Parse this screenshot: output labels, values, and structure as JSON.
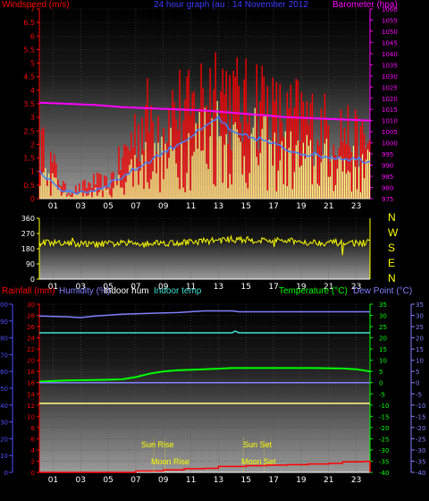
{
  "header": {
    "left_label": "Windspeed (m/s)",
    "title": "24 hour graph (au : 14 November 2012",
    "right_label": "Barometer (hpa)"
  },
  "panel3_labels": {
    "rain": "Rainfall (mm)",
    "humidity": "Humidity (%)",
    "indoor_hum": "Indoor hum",
    "indoor_temp": "Indoor temp",
    "temperature": "Temperature (°C)",
    "dew_point": "Dew Point (°C)"
  },
  "compass": [
    "N",
    "W",
    "S",
    "E",
    "N"
  ],
  "events": {
    "sun_rise": "Sun Rise",
    "moon_rise": "Moon Rise",
    "sun_set": "Sun Set",
    "moon_set": "Moon Set"
  },
  "colors": {
    "wind_gust": "#ff0000",
    "wind_avg": "#ffff80",
    "wind_mean": "#3f7fff",
    "barometer": "#ff00ff",
    "wind_dir": "#ffff00",
    "rain": "#ff0000",
    "humidity": "#8080ff",
    "indoor_hum": "#ffff80",
    "indoor_temp": "#40e0d0",
    "temperature": "#00ff00",
    "dew_point": "#8080ff"
  },
  "chart_data": [
    {
      "type": "line",
      "title": "24 hour graph (au : 14 November 2012",
      "x_ticks": [
        "01",
        "03",
        "05",
        "07",
        "09",
        "11",
        "13",
        "15",
        "17",
        "19",
        "21",
        "23"
      ],
      "x_range": [
        0,
        24
      ],
      "left_axis": {
        "label": "Windspeed (m/s)",
        "ylim": [
          0,
          7
        ],
        "ticks": [
          "0",
          "0.5",
          "1",
          "1.5",
          "2",
          "2.5",
          "3",
          "3.5",
          "4",
          "4.5",
          "5",
          "5.5",
          "6",
          "6.5",
          "7"
        ]
      },
      "right_axis": {
        "label": "Barometer (hpa)",
        "ylim": [
          975,
          1060
        ],
        "ticks": [
          "975",
          "980",
          "985",
          "990",
          "995",
          "1000",
          "1005",
          "1010",
          "1015",
          "1020",
          "1025",
          "1030",
          "1035",
          "1040",
          "1045",
          "1050",
          "1055",
          "1060"
        ]
      },
      "series": [
        {
          "name": "Barometer (hpa)",
          "axis": "right",
          "x": [
            0,
            2,
            4,
            6,
            8,
            10,
            12,
            14,
            16,
            18,
            20,
            22,
            24
          ],
          "values": [
            1018,
            1017.5,
            1017,
            1016,
            1015.5,
            1015,
            1014.5,
            1013.5,
            1012.5,
            1011.5,
            1011,
            1010.5,
            1010
          ]
        },
        {
          "name": "gust",
          "axis": "left",
          "x": [
            0,
            1,
            2,
            3,
            4,
            5,
            6,
            7,
            8,
            9,
            10,
            11,
            12,
            13,
            14,
            15,
            16,
            17,
            18,
            19,
            20,
            21,
            22,
            23,
            24
          ],
          "values": [
            2.5,
            1.5,
            0.3,
            0.5,
            0.8,
            0.7,
            1.8,
            3.2,
            3.8,
            3.5,
            4.2,
            3.8,
            5.0,
            5.5,
            4.5,
            4.2,
            4.8,
            3.8,
            3.6,
            3.8,
            3.4,
            3.2,
            3.3,
            2.6,
            2.5
          ]
        },
        {
          "name": "average",
          "axis": "left",
          "x": [
            0,
            1,
            2,
            3,
            4,
            5,
            6,
            7,
            8,
            9,
            10,
            11,
            12,
            13,
            14,
            15,
            16,
            17,
            18,
            19,
            20,
            21,
            22,
            23,
            24
          ],
          "values": [
            1.1,
            0.7,
            0.1,
            0.2,
            0.3,
            0.3,
            0.8,
            1.5,
            1.6,
            1.6,
            2.0,
            2.3,
            2.7,
            2.8,
            2.4,
            2.2,
            2.3,
            1.8,
            1.8,
            1.7,
            1.6,
            1.5,
            1.6,
            1.3,
            1.3
          ]
        },
        {
          "name": "mean",
          "axis": "left",
          "x": [
            0,
            2,
            4,
            6,
            8,
            10,
            12,
            13,
            14,
            16,
            18,
            20,
            22,
            24
          ],
          "values": [
            1.0,
            0.2,
            0.3,
            0.8,
            1.4,
            2.0,
            2.6,
            3.0,
            2.4,
            2.2,
            1.8,
            1.6,
            1.5,
            1.4
          ]
        }
      ]
    },
    {
      "type": "line",
      "x_ticks": [
        "01",
        "03",
        "05",
        "07",
        "09",
        "11",
        "13",
        "15",
        "17",
        "19",
        "21",
        "23"
      ],
      "x_range": [
        0,
        24
      ],
      "left_axis": {
        "ylim": [
          0,
          360
        ],
        "ticks": [
          "0",
          "90",
          "180",
          "270",
          "360"
        ]
      },
      "series": [
        {
          "name": "wind direction",
          "x": [
            0,
            2,
            4,
            6,
            8,
            10,
            12,
            14,
            16,
            18,
            20,
            22,
            24
          ],
          "values": [
            215,
            210,
            205,
            212,
            215,
            215,
            225,
            235,
            230,
            225,
            218,
            215,
            215
          ]
        }
      ]
    },
    {
      "type": "line",
      "x_ticks": [
        "01",
        "03",
        "05",
        "07",
        "09",
        "11",
        "13",
        "15",
        "17",
        "19",
        "21",
        "23"
      ],
      "x_range": [
        0,
        24
      ],
      "rain_axis": {
        "label": "Rainfall (mm)",
        "ylim": [
          0,
          100
        ],
        "ticks": [
          "0",
          "10",
          "20",
          "30",
          "40",
          "50",
          "60",
          "70",
          "80",
          "90",
          "100"
        ]
      },
      "small_axis": {
        "ylim": [
          0,
          30
        ],
        "ticks": [
          "0",
          "2",
          "4",
          "6",
          "8",
          "10",
          "12",
          "14",
          "16",
          "18",
          "20",
          "22",
          "24",
          "26",
          "28",
          "30"
        ]
      },
      "temp_axis": {
        "label": "Temperature (°C)",
        "ylim": [
          -40,
          35
        ],
        "ticks": [
          "35",
          "30",
          "25",
          "20",
          "15",
          "10",
          "5",
          "0",
          "-5",
          "-10",
          "-15",
          "-20",
          "-25",
          "-30",
          "-35",
          "-40"
        ]
      },
      "series": [
        {
          "name": "Humidity (%)",
          "axis": "rain",
          "x": [
            0,
            2,
            3,
            4,
            6,
            8,
            10,
            12,
            14,
            14.5,
            16,
            18,
            20,
            22,
            24
          ],
          "values": [
            93,
            92.5,
            92,
            93,
            94,
            94.5,
            95,
            96,
            96,
            95.5,
            95.5,
            95.5,
            95.5,
            95.5,
            95.5
          ]
        },
        {
          "name": "Indoor temp",
          "axis": "rain",
          "x": [
            0,
            4,
            8,
            12,
            14,
            14.2,
            14.5,
            16,
            20,
            24
          ],
          "values": [
            83,
            83,
            83,
            83,
            83,
            84,
            83,
            83,
            83,
            83
          ]
        },
        {
          "name": "Temperature (°C)",
          "axis": "temp",
          "x": [
            0,
            2,
            4,
            6,
            7,
            8,
            9,
            10,
            12,
            14,
            16,
            18,
            20,
            22,
            23,
            24
          ],
          "values": [
            0.5,
            1,
            1.2,
            1.5,
            2.5,
            4,
            5,
            5.5,
            6,
            6.5,
            6.5,
            6.5,
            6.5,
            6.3,
            6,
            5
          ]
        },
        {
          "name": "Dew Point (°C)",
          "axis": "temp",
          "x": [
            0,
            24
          ],
          "values": [
            0,
            0
          ]
        },
        {
          "name": "Indoor hum",
          "axis": "rain",
          "x": [
            0,
            24
          ],
          "values": [
            41,
            41
          ]
        },
        {
          "name": "Rainfall (mm)",
          "axis": "rain",
          "x": [
            0,
            6,
            7,
            9,
            10.5,
            12,
            13,
            15,
            16.5,
            18,
            19.5,
            21,
            22,
            23.5,
            24
          ],
          "values": [
            0,
            0,
            0.8,
            1.5,
            2.2,
            2.4,
            3.5,
            4.0,
            4.3,
            4.6,
            5.0,
            5.3,
            6.2,
            6.5,
            0
          ]
        }
      ],
      "annotations": [
        "Sun Rise",
        "Moon Rise",
        "Sun Set",
        "Moon Set"
      ]
    }
  ]
}
